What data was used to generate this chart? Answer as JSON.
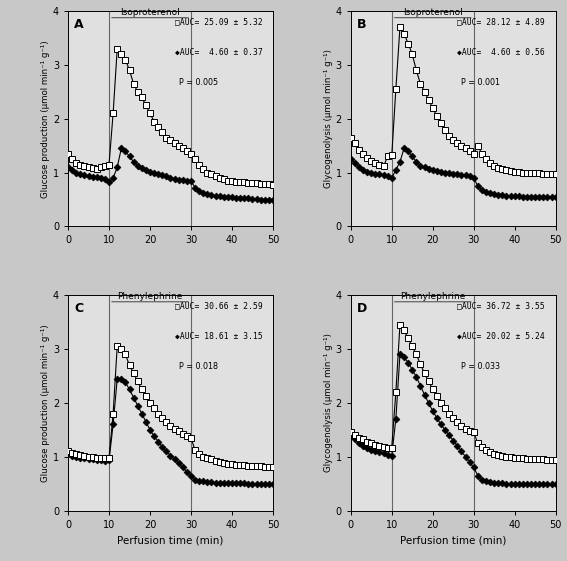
{
  "background_color": "#c8c8c8",
  "panel_bg": "#e0e0e0",
  "panels": [
    {
      "label": "A",
      "drug": "Isoproterenol",
      "ylabel": "Glucose production (μmol min⁻¹ g⁻¹)",
      "xlabel": "",
      "auc_open": "□AUC= 25.09 ± 5.32",
      "auc_filled": "◆AUC=  4.60 ± 0.37",
      "pval": "P = 0.005",
      "vline1": 10,
      "vline2": 30,
      "ylim": [
        0,
        4
      ],
      "yticks": [
        0,
        1,
        2,
        3,
        4
      ],
      "open_x": [
        0,
        1,
        2,
        3,
        4,
        5,
        6,
        7,
        8,
        9,
        10,
        11,
        12,
        13,
        14,
        15,
        16,
        17,
        18,
        19,
        20,
        21,
        22,
        23,
        24,
        25,
        26,
        27,
        28,
        29,
        30,
        31,
        32,
        33,
        34,
        35,
        36,
        37,
        38,
        39,
        40,
        41,
        42,
        43,
        44,
        45,
        46,
        47,
        48,
        49,
        50
      ],
      "open_y": [
        1.35,
        1.25,
        1.18,
        1.15,
        1.12,
        1.1,
        1.08,
        1.07,
        1.1,
        1.12,
        1.15,
        2.1,
        3.3,
        3.2,
        3.1,
        2.9,
        2.65,
        2.5,
        2.4,
        2.25,
        2.1,
        1.95,
        1.85,
        1.75,
        1.65,
        1.6,
        1.55,
        1.5,
        1.45,
        1.4,
        1.35,
        1.25,
        1.15,
        1.07,
        1.0,
        0.97,
        0.93,
        0.9,
        0.88,
        0.85,
        0.85,
        0.83,
        0.82,
        0.82,
        0.81,
        0.8,
        0.8,
        0.79,
        0.78,
        0.78,
        0.77
      ],
      "filled_x": [
        0,
        1,
        2,
        3,
        4,
        5,
        6,
        7,
        8,
        9,
        10,
        11,
        12,
        13,
        14,
        15,
        16,
        17,
        18,
        19,
        20,
        21,
        22,
        23,
        24,
        25,
        26,
        27,
        28,
        29,
        30,
        31,
        32,
        33,
        34,
        35,
        36,
        37,
        38,
        39,
        40,
        41,
        42,
        43,
        44,
        45,
        46,
        47,
        48,
        49,
        50
      ],
      "filled_y": [
        1.1,
        1.05,
        1.0,
        0.97,
        0.95,
        0.93,
        0.92,
        0.91,
        0.9,
        0.88,
        0.82,
        0.9,
        1.1,
        1.45,
        1.4,
        1.3,
        1.2,
        1.12,
        1.08,
        1.05,
        1.02,
        1.0,
        0.98,
        0.95,
        0.93,
        0.9,
        0.88,
        0.87,
        0.86,
        0.85,
        0.85,
        0.72,
        0.65,
        0.62,
        0.6,
        0.58,
        0.57,
        0.56,
        0.55,
        0.55,
        0.54,
        0.53,
        0.53,
        0.52,
        0.52,
        0.51,
        0.51,
        0.5,
        0.5,
        0.5,
        0.5
      ]
    },
    {
      "label": "B",
      "drug": "Isoproterenol",
      "ylabel": "Glycogenolysis (μmol min⁻¹ g⁻¹)",
      "xlabel": "",
      "auc_open": "□AUC= 28.12 ± 4.89",
      "auc_filled": "◆AUC=  4.60 ± 0.56",
      "pval": "P = 0.001",
      "vline1": 10,
      "vline2": 30,
      "ylim": [
        0,
        4
      ],
      "yticks": [
        0,
        1,
        2,
        3,
        4
      ],
      "open_x": [
        0,
        1,
        2,
        3,
        4,
        5,
        6,
        7,
        8,
        9,
        10,
        11,
        12,
        13,
        14,
        15,
        16,
        17,
        18,
        19,
        20,
        21,
        22,
        23,
        24,
        25,
        26,
        27,
        28,
        29,
        30,
        31,
        32,
        33,
        34,
        35,
        36,
        37,
        38,
        39,
        40,
        41,
        42,
        43,
        44,
        45,
        46,
        47,
        48,
        49,
        50
      ],
      "open_y": [
        1.65,
        1.55,
        1.42,
        1.35,
        1.28,
        1.22,
        1.18,
        1.14,
        1.12,
        1.3,
        1.32,
        2.55,
        3.7,
        3.58,
        3.4,
        3.2,
        2.9,
        2.65,
        2.5,
        2.35,
        2.2,
        2.05,
        1.92,
        1.8,
        1.68,
        1.6,
        1.55,
        1.5,
        1.45,
        1.4,
        1.35,
        1.5,
        1.35,
        1.25,
        1.17,
        1.12,
        1.08,
        1.06,
        1.04,
        1.03,
        1.02,
        1.01,
        1.0,
        1.0,
        1.0,
        1.0,
        1.0,
        0.98,
        0.98,
        0.97,
        0.97
      ],
      "filled_x": [
        0,
        1,
        2,
        3,
        4,
        5,
        6,
        7,
        8,
        9,
        10,
        11,
        12,
        13,
        14,
        15,
        16,
        17,
        18,
        19,
        20,
        21,
        22,
        23,
        24,
        25,
        26,
        27,
        28,
        29,
        30,
        31,
        32,
        33,
        34,
        35,
        36,
        37,
        38,
        39,
        40,
        41,
        42,
        43,
        44,
        45,
        46,
        47,
        48,
        49,
        50
      ],
      "filled_y": [
        1.25,
        1.18,
        1.1,
        1.05,
        1.02,
        1.0,
        0.98,
        0.97,
        0.96,
        0.93,
        0.9,
        1.05,
        1.2,
        1.45,
        1.4,
        1.3,
        1.2,
        1.13,
        1.1,
        1.07,
        1.05,
        1.03,
        1.02,
        1.0,
        0.99,
        0.98,
        0.97,
        0.96,
        0.95,
        0.93,
        0.9,
        0.75,
        0.68,
        0.64,
        0.62,
        0.6,
        0.59,
        0.58,
        0.57,
        0.57,
        0.56,
        0.56,
        0.55,
        0.55,
        0.55,
        0.55,
        0.55,
        0.55,
        0.55,
        0.55,
        0.55
      ]
    },
    {
      "label": "C",
      "drug": "Phenylephrine",
      "ylabel": "Glucose production (μmol min⁻¹ g⁻¹)",
      "xlabel": "Perfusion time (min)",
      "auc_open": "□AUC= 30.66 ± 2.59",
      "auc_filled": "◆AUC= 18.61 ± 3.15",
      "pval": "P = 0.018",
      "vline1": 10,
      "vline2": 30,
      "ylim": [
        0,
        4
      ],
      "yticks": [
        0,
        1,
        2,
        3,
        4
      ],
      "open_x": [
        0,
        1,
        2,
        3,
        4,
        5,
        6,
        7,
        8,
        9,
        10,
        11,
        12,
        13,
        14,
        15,
        16,
        17,
        18,
        19,
        20,
        21,
        22,
        23,
        24,
        25,
        26,
        27,
        28,
        29,
        30,
        31,
        32,
        33,
        34,
        35,
        36,
        37,
        38,
        39,
        40,
        41,
        42,
        43,
        44,
        45,
        46,
        47,
        48,
        49,
        50
      ],
      "open_y": [
        1.1,
        1.07,
        1.05,
        1.03,
        1.02,
        1.0,
        0.99,
        0.98,
        0.97,
        0.97,
        0.98,
        1.8,
        3.05,
        3.0,
        2.9,
        2.7,
        2.55,
        2.4,
        2.25,
        2.12,
        2.0,
        1.9,
        1.8,
        1.72,
        1.65,
        1.58,
        1.52,
        1.48,
        1.42,
        1.38,
        1.35,
        1.12,
        1.05,
        1.0,
        0.97,
        0.95,
        0.92,
        0.9,
        0.88,
        0.87,
        0.86,
        0.85,
        0.84,
        0.84,
        0.83,
        0.83,
        0.82,
        0.82,
        0.81,
        0.81,
        0.8
      ],
      "filled_x": [
        0,
        1,
        2,
        3,
        4,
        5,
        6,
        7,
        8,
        9,
        10,
        11,
        12,
        13,
        14,
        15,
        16,
        17,
        18,
        19,
        20,
        21,
        22,
        23,
        24,
        25,
        26,
        27,
        28,
        29,
        30,
        31,
        32,
        33,
        34,
        35,
        36,
        37,
        38,
        39,
        40,
        41,
        42,
        43,
        44,
        45,
        46,
        47,
        48,
        49,
        50
      ],
      "filled_y": [
        1.05,
        1.02,
        1.0,
        0.98,
        0.97,
        0.96,
        0.95,
        0.94,
        0.93,
        0.92,
        0.93,
        1.6,
        2.45,
        2.45,
        2.38,
        2.25,
        2.1,
        1.95,
        1.8,
        1.65,
        1.5,
        1.38,
        1.28,
        1.18,
        1.1,
        1.02,
        0.95,
        0.88,
        0.8,
        0.72,
        0.65,
        0.57,
        0.55,
        0.54,
        0.53,
        0.53,
        0.52,
        0.52,
        0.52,
        0.52,
        0.51,
        0.51,
        0.51,
        0.51,
        0.5,
        0.5,
        0.5,
        0.5,
        0.5,
        0.5,
        0.5
      ]
    },
    {
      "label": "D",
      "drug": "Phenylephrine",
      "ylabel": "Glycogenolysis (μmol min⁻¹ g⁻¹)",
      "xlabel": "Perfusion time (min)",
      "auc_open": "□AUC= 36.72 ± 3.55",
      "auc_filled": "◆AUC= 20.02 ± 5.24",
      "pval": "P = 0.033",
      "vline1": 10,
      "vline2": 30,
      "ylim": [
        0,
        4
      ],
      "yticks": [
        0,
        1,
        2,
        3,
        4
      ],
      "open_x": [
        0,
        1,
        2,
        3,
        4,
        5,
        6,
        7,
        8,
        9,
        10,
        11,
        12,
        13,
        14,
        15,
        16,
        17,
        18,
        19,
        20,
        21,
        22,
        23,
        24,
        25,
        26,
        27,
        28,
        29,
        30,
        31,
        32,
        33,
        34,
        35,
        36,
        37,
        38,
        39,
        40,
        41,
        42,
        43,
        44,
        45,
        46,
        47,
        48,
        49,
        50
      ],
      "open_y": [
        1.45,
        1.4,
        1.35,
        1.32,
        1.28,
        1.25,
        1.22,
        1.2,
        1.18,
        1.17,
        1.17,
        2.2,
        3.45,
        3.35,
        3.2,
        3.05,
        2.9,
        2.72,
        2.55,
        2.4,
        2.25,
        2.12,
        2.0,
        1.9,
        1.8,
        1.72,
        1.65,
        1.58,
        1.52,
        1.48,
        1.45,
        1.25,
        1.18,
        1.12,
        1.08,
        1.05,
        1.03,
        1.01,
        1.0,
        0.99,
        0.98,
        0.97,
        0.97,
        0.96,
        0.96,
        0.95,
        0.95,
        0.95,
        0.94,
        0.94,
        0.93
      ],
      "filled_x": [
        0,
        1,
        2,
        3,
        4,
        5,
        6,
        7,
        8,
        9,
        10,
        11,
        12,
        13,
        14,
        15,
        16,
        17,
        18,
        19,
        20,
        21,
        22,
        23,
        24,
        25,
        26,
        27,
        28,
        29,
        30,
        31,
        32,
        33,
        34,
        35,
        36,
        37,
        38,
        39,
        40,
        41,
        42,
        43,
        44,
        45,
        46,
        47,
        48,
        49,
        50
      ],
      "filled_y": [
        1.38,
        1.32,
        1.25,
        1.2,
        1.16,
        1.13,
        1.1,
        1.08,
        1.06,
        1.04,
        1.02,
        1.7,
        2.9,
        2.85,
        2.75,
        2.62,
        2.48,
        2.32,
        2.15,
        2.0,
        1.85,
        1.72,
        1.6,
        1.5,
        1.4,
        1.3,
        1.2,
        1.1,
        1.0,
        0.9,
        0.8,
        0.65,
        0.57,
        0.54,
        0.53,
        0.52,
        0.51,
        0.51,
        0.5,
        0.5,
        0.5,
        0.5,
        0.5,
        0.5,
        0.5,
        0.5,
        0.5,
        0.5,
        0.5,
        0.5,
        0.5
      ]
    }
  ]
}
